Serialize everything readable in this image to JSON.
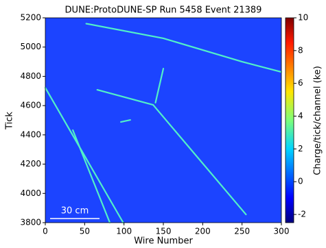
{
  "chart_data": {
    "type": "line",
    "title": "DUNE:ProtoDUNE-SP Run 5458 Event 21389",
    "x_label": "Wire Number",
    "y_label": "Tick",
    "xlim": [
      0,
      300
    ],
    "ylim": [
      3800,
      5200
    ],
    "xticks": [
      0,
      50,
      100,
      150,
      200,
      250,
      300
    ],
    "yticks": [
      3800,
      4000,
      4200,
      4400,
      4600,
      4800,
      5000,
      5200
    ],
    "background": "#1c44ff",
    "series": [
      {
        "color": "#52f0c8",
        "x": [
          52,
          150,
          250,
          300
        ],
        "values": [
          5160,
          5060,
          4900,
          4830
        ]
      },
      {
        "color": "#52f0c8",
        "x": [
          66,
          137
        ],
        "values": [
          4708,
          4605
        ]
      },
      {
        "color": "#52f0c8",
        "x": [
          140,
          150
        ],
        "values": [
          4620,
          4853
        ]
      },
      {
        "color": "#52f0c8",
        "x": [
          137,
          255
        ],
        "values": [
          4605,
          3856
        ]
      },
      {
        "color": "#52f0c8",
        "x": [
          0,
          99
        ],
        "values": [
          4722,
          3800
        ]
      },
      {
        "color": "#52f0c8",
        "x": [
          35,
          82
        ],
        "values": [
          4432,
          3800
        ]
      },
      {
        "color": "#52f0c8",
        "x": [
          96,
          108
        ],
        "values": [
          4488,
          4502
        ]
      }
    ],
    "colorbar": {
      "label": "Charge/tick/channel (ke)",
      "lim": [
        -2.5,
        10
      ],
      "ticks": [
        -2,
        0,
        2,
        4,
        6,
        8,
        10
      ]
    },
    "annotation": "30 cm"
  }
}
